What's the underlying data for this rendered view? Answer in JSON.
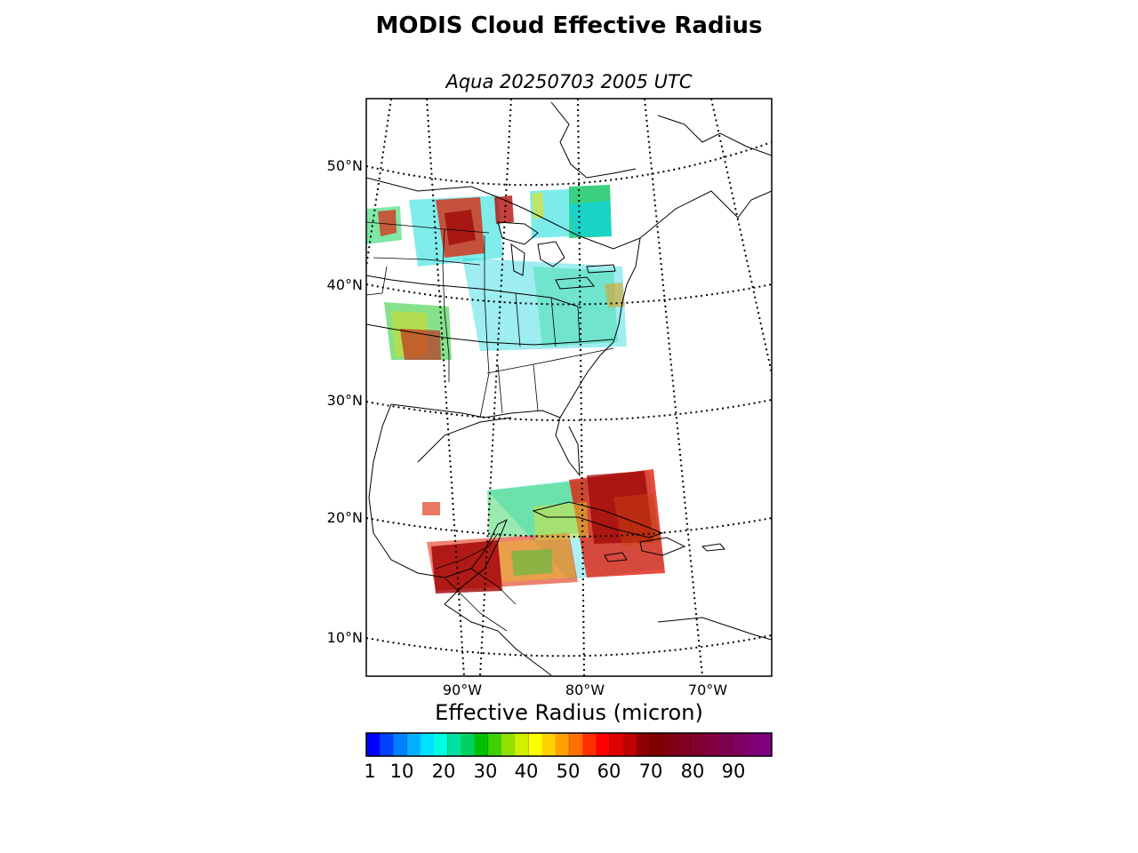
{
  "title": "MODIS Cloud Effective Radius",
  "subtitle": "Aqua 20250703 2005 UTC",
  "map": {
    "latitude_labels": [
      "50°N",
      "40°N",
      "30°N",
      "20°N",
      "10°N"
    ],
    "longitude_labels": [
      "90°W",
      "80°W",
      "70°W"
    ]
  },
  "colorbar": {
    "title": "Effective Radius (micron)",
    "tick_labels": [
      "1",
      "10",
      "20",
      "30",
      "40",
      "50",
      "60",
      "70",
      "80",
      "90"
    ],
    "colors": [
      "#0000ff",
      "#0040ff",
      "#0080ff",
      "#00b0ff",
      "#00e0ff",
      "#00ffe0",
      "#00e0a0",
      "#00d060",
      "#00c000",
      "#40d000",
      "#90e000",
      "#d0f000",
      "#ffff00",
      "#ffd000",
      "#ffa000",
      "#ff7000",
      "#ff3000",
      "#ff0000",
      "#e00000",
      "#c00000",
      "#900000",
      "#800000",
      "#800010",
      "#800020",
      "#800030",
      "#800040",
      "#800050",
      "#800060",
      "#800070",
      "#800080"
    ]
  },
  "chart_data": {
    "type": "heatmap",
    "title": "MODIS Cloud Effective Radius",
    "subtitle": "Aqua 20250703 2005 UTC",
    "colorbar_label": "Effective Radius (micron)",
    "colorbar_ticks": [
      1,
      10,
      20,
      30,
      40,
      50,
      60,
      70,
      80,
      90
    ],
    "lat_ticks": [
      50,
      40,
      30,
      20,
      10
    ],
    "lon_ticks": [
      -90,
      -80,
      -70
    ]
  }
}
